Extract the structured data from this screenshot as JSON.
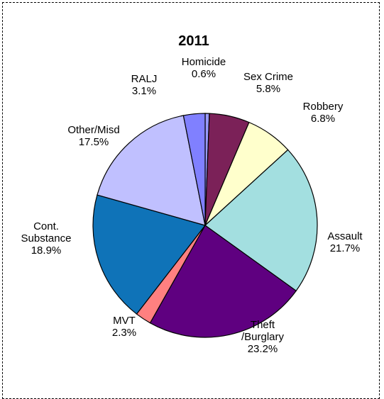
{
  "chart_data": {
    "type": "pie",
    "title": "2011",
    "slices": [
      {
        "name": "Homicide",
        "value": 0.6,
        "label": "0.6%",
        "color": "#9999ff"
      },
      {
        "name": "Sex Crime",
        "value": 5.8,
        "label": "5.8%",
        "color": "#7b2158"
      },
      {
        "name": "Robbery",
        "value": 6.8,
        "label": "6.8%",
        "color": "#ffffcc"
      },
      {
        "name": "Assault",
        "value": 21.7,
        "label": "21.7%",
        "color": "#a3dfe0"
      },
      {
        "name": "Theft /Burglary",
        "value": 23.2,
        "label": "23.2%",
        "color": "#5f0080"
      },
      {
        "name": "MVT",
        "value": 2.3,
        "label": "2.3%",
        "color": "#ff8080"
      },
      {
        "name": "Cont. Substance",
        "value": 18.9,
        "label": "18.9%",
        "color": "#0f73b8"
      },
      {
        "name": "Other/Misd",
        "value": 17.5,
        "label": "17.5%",
        "color": "#c0c0ff"
      },
      {
        "name": "RALJ",
        "value": 3.1,
        "label": "3.1%",
        "color": "#8080ff"
      }
    ],
    "start_angle_deg": 0,
    "direction": "clockwise"
  }
}
